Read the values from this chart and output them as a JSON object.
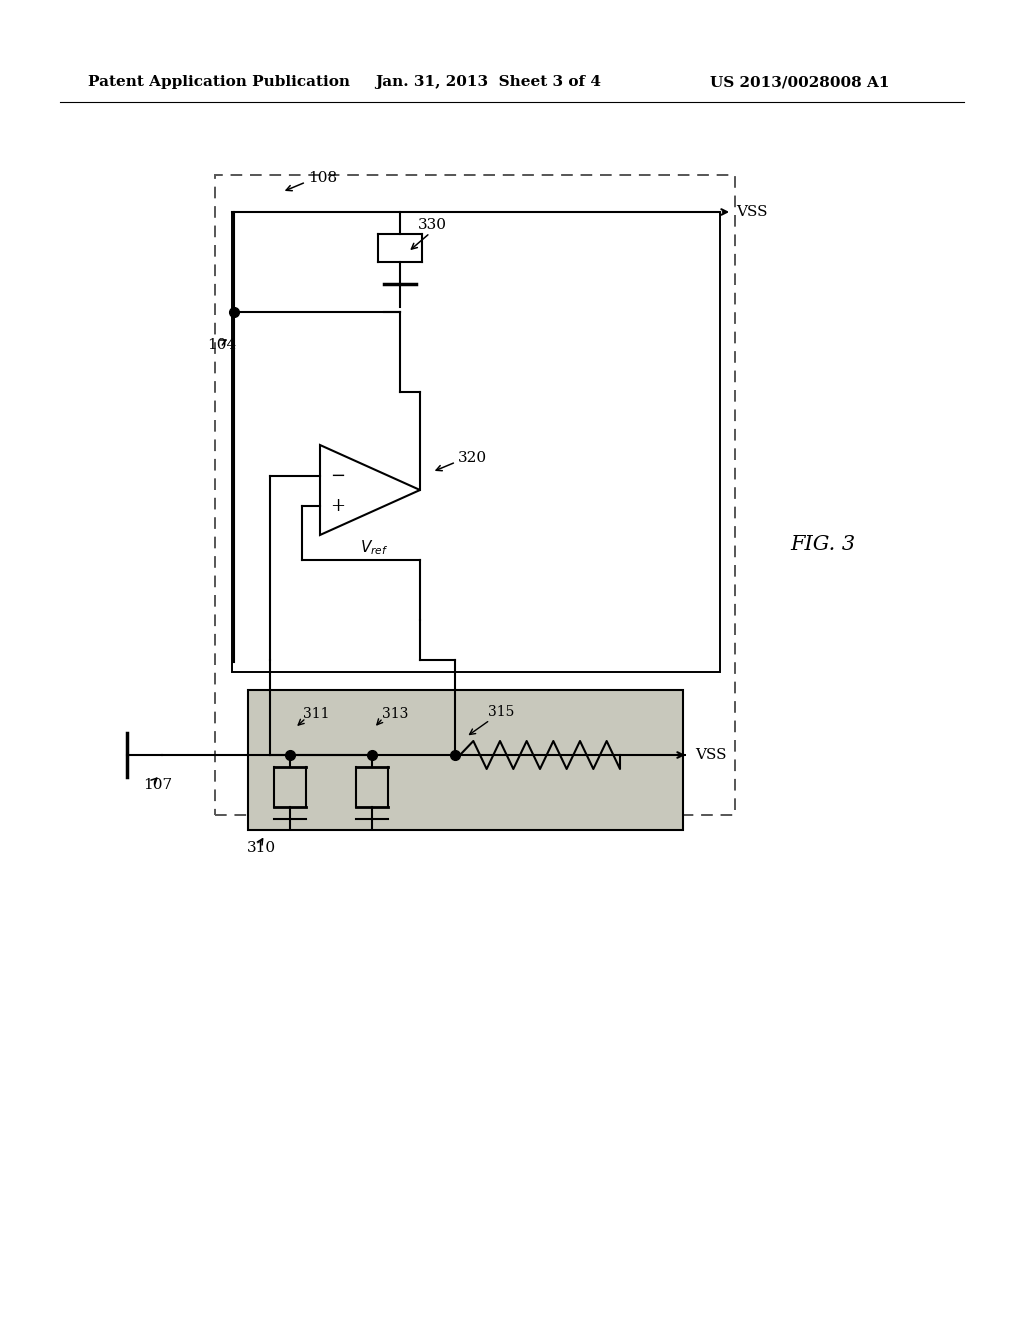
{
  "bg_color": "#ffffff",
  "header_left": "Patent Application Publication",
  "header_mid": "Jan. 31, 2013  Sheet 3 of 4",
  "header_right": "US 2013/0028008 A1",
  "fig_label": "FIG. 3",
  "outer_box_label": "108",
  "inner_box_label": "104",
  "bottom_box_label": "310",
  "transistor_label": "107",
  "mosfet_label": "330",
  "amp_label": "320",
  "vref_label": "$V_{ref}$",
  "vss_label": "VSS",
  "s311_label": "311",
  "s313_label": "313",
  "s315_label": "315"
}
